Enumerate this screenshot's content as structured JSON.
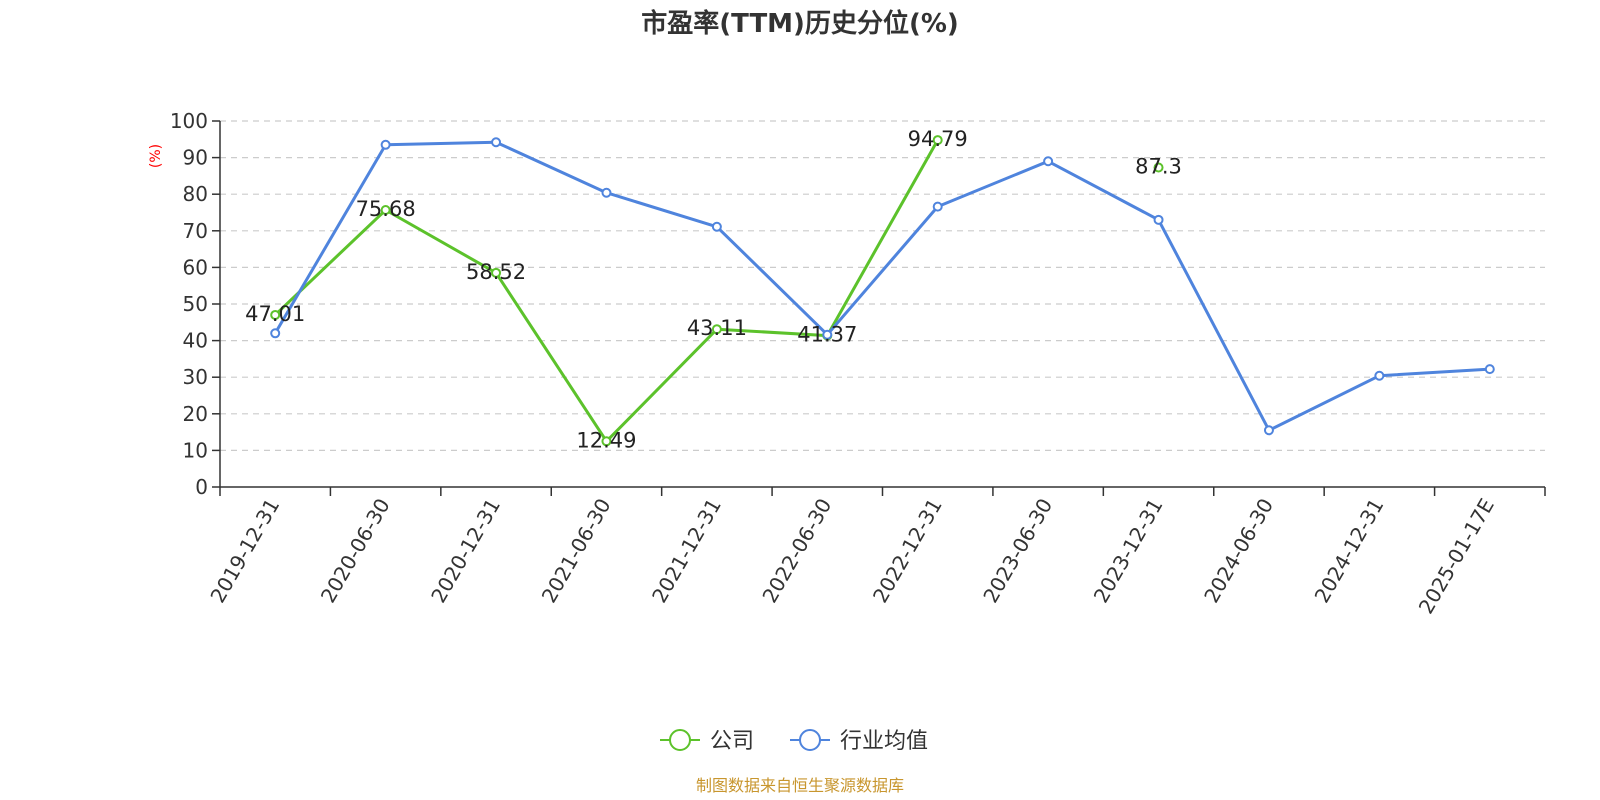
{
  "chart_data": {
    "type": "line",
    "title": "市盈率(TTM)历史分位(%)",
    "ylabel": "(%)",
    "ylim": [
      0,
      100
    ],
    "yticks": [
      0,
      10,
      20,
      30,
      40,
      50,
      60,
      70,
      80,
      90,
      100
    ],
    "grid": true,
    "legend_position": "bottom-center",
    "categories": [
      "2019-12-31",
      "2020-06-30",
      "2020-12-31",
      "2021-06-30",
      "2021-12-31",
      "2022-06-30",
      "2022-12-31",
      "2023-06-30",
      "2023-12-31",
      "2024-06-30",
      "2024-12-31",
      "2025-01-17E"
    ],
    "series": [
      {
        "name": "公司",
        "color": "#5cc22b",
        "values": [
          47.01,
          75.68,
          58.52,
          12.49,
          43.11,
          41.37,
          94.79,
          null,
          87.3,
          null,
          null,
          null
        ],
        "labels": [
          "47.01",
          "75.68",
          "58.52",
          "12.49",
          "43.11",
          "41.37",
          "94.79",
          null,
          "87.3",
          null,
          null,
          null
        ]
      },
      {
        "name": "行业均值",
        "color": "#4f84dd",
        "values": [
          42.0,
          93.5,
          94.2,
          80.4,
          71.1,
          41.6,
          76.6,
          89.0,
          73.0,
          15.5,
          30.4,
          32.2
        ],
        "labels": null
      }
    ]
  },
  "source_text": "制图数据来自恒生聚源数据库"
}
